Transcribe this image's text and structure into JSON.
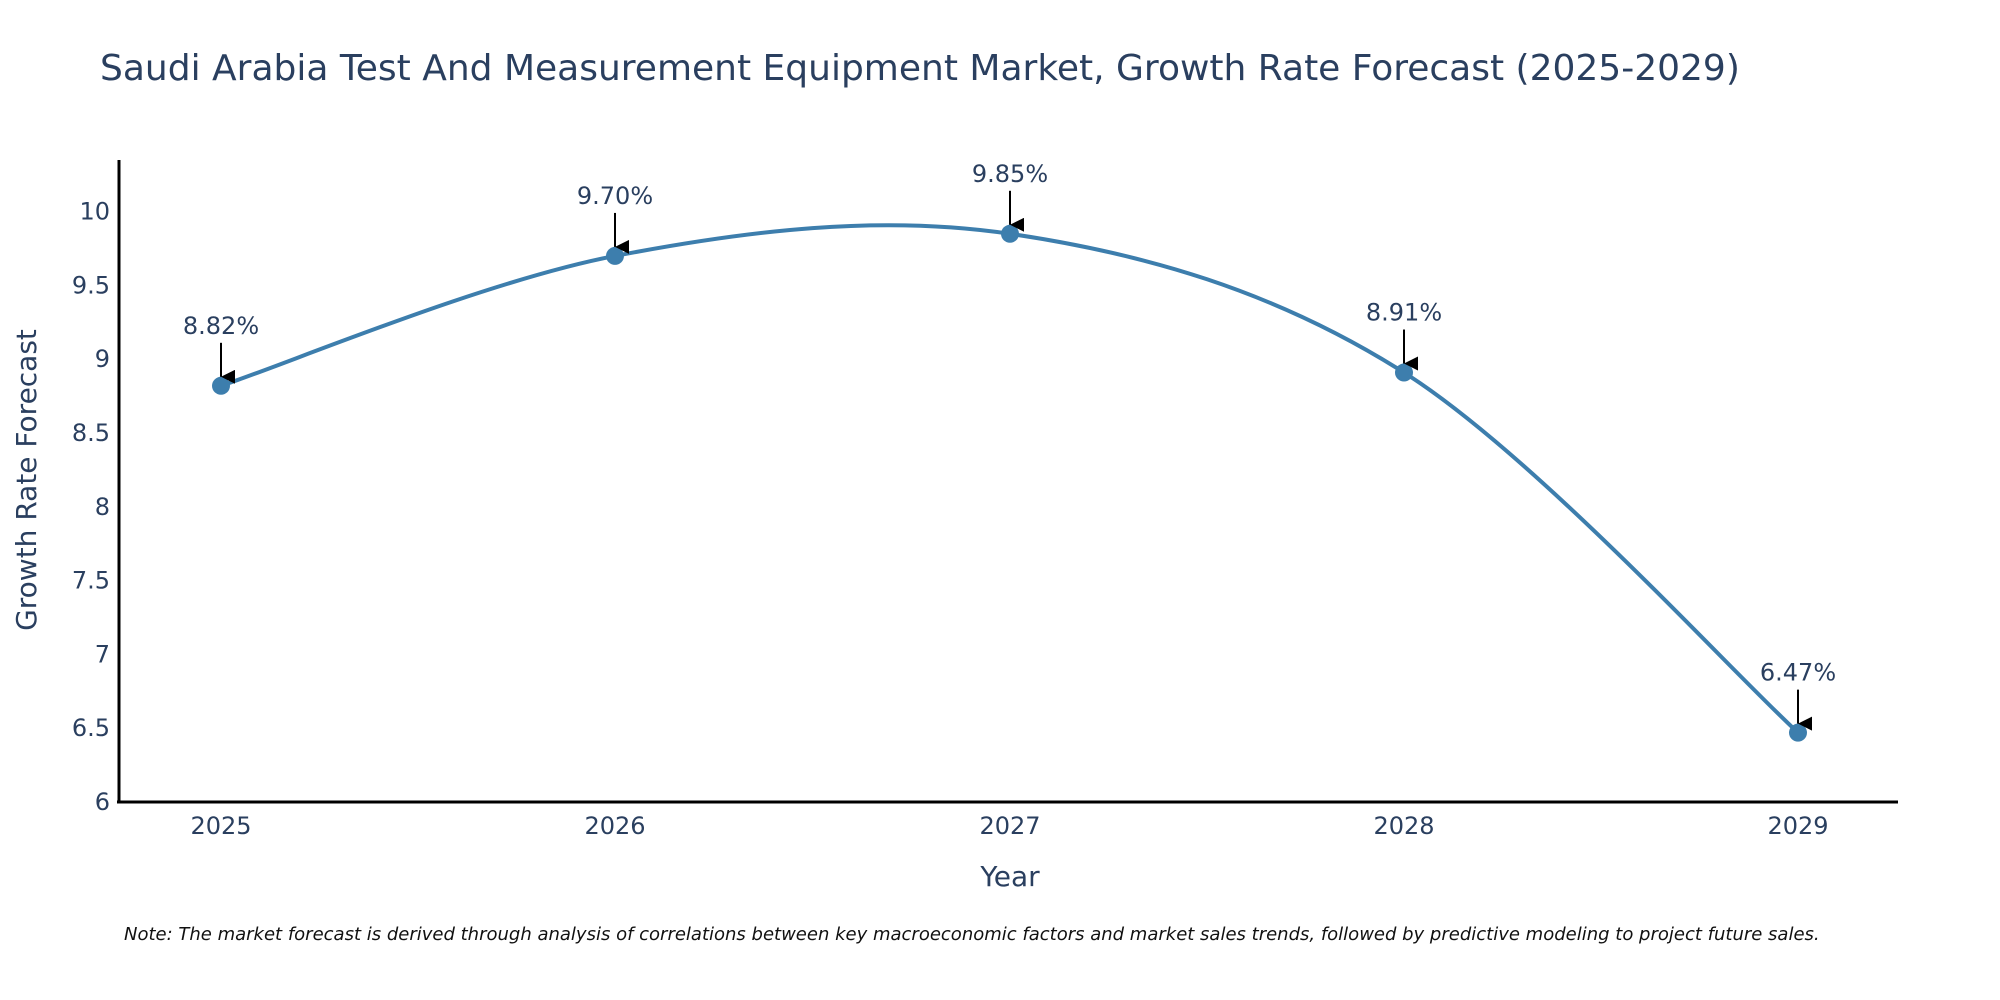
{
  "chart_data": {
    "type": "line",
    "title": "Saudi Arabia Test And Measurement Equipment Market, Growth Rate Forecast (2025-2029)",
    "xlabel": "Year",
    "ylabel": "Growth Rate Forecast",
    "categories": [
      "2025",
      "2026",
      "2027",
      "2028",
      "2029"
    ],
    "values": [
      8.82,
      9.7,
      9.85,
      8.91,
      6.47
    ],
    "data_labels": [
      "8.82%",
      "9.70%",
      "9.85%",
      "8.91%",
      "6.47%"
    ],
    "ylim": [
      6,
      10.35
    ],
    "yticks": [
      6,
      6.5,
      7,
      7.5,
      8,
      8.5,
      9,
      9.5,
      10
    ],
    "ytick_labels": [
      "6",
      "6.5",
      "7",
      "7.5",
      "8",
      "8.5",
      "9",
      "9.5",
      "10"
    ],
    "grid": false,
    "line_color": "#3d7ead",
    "marker_color": "#3d7ead",
    "arrow_color": "#000000",
    "note": "Note: The market forecast is derived through analysis of correlations between key macroeconomic factors and market sales trends, followed by predictive modeling to project future sales."
  }
}
